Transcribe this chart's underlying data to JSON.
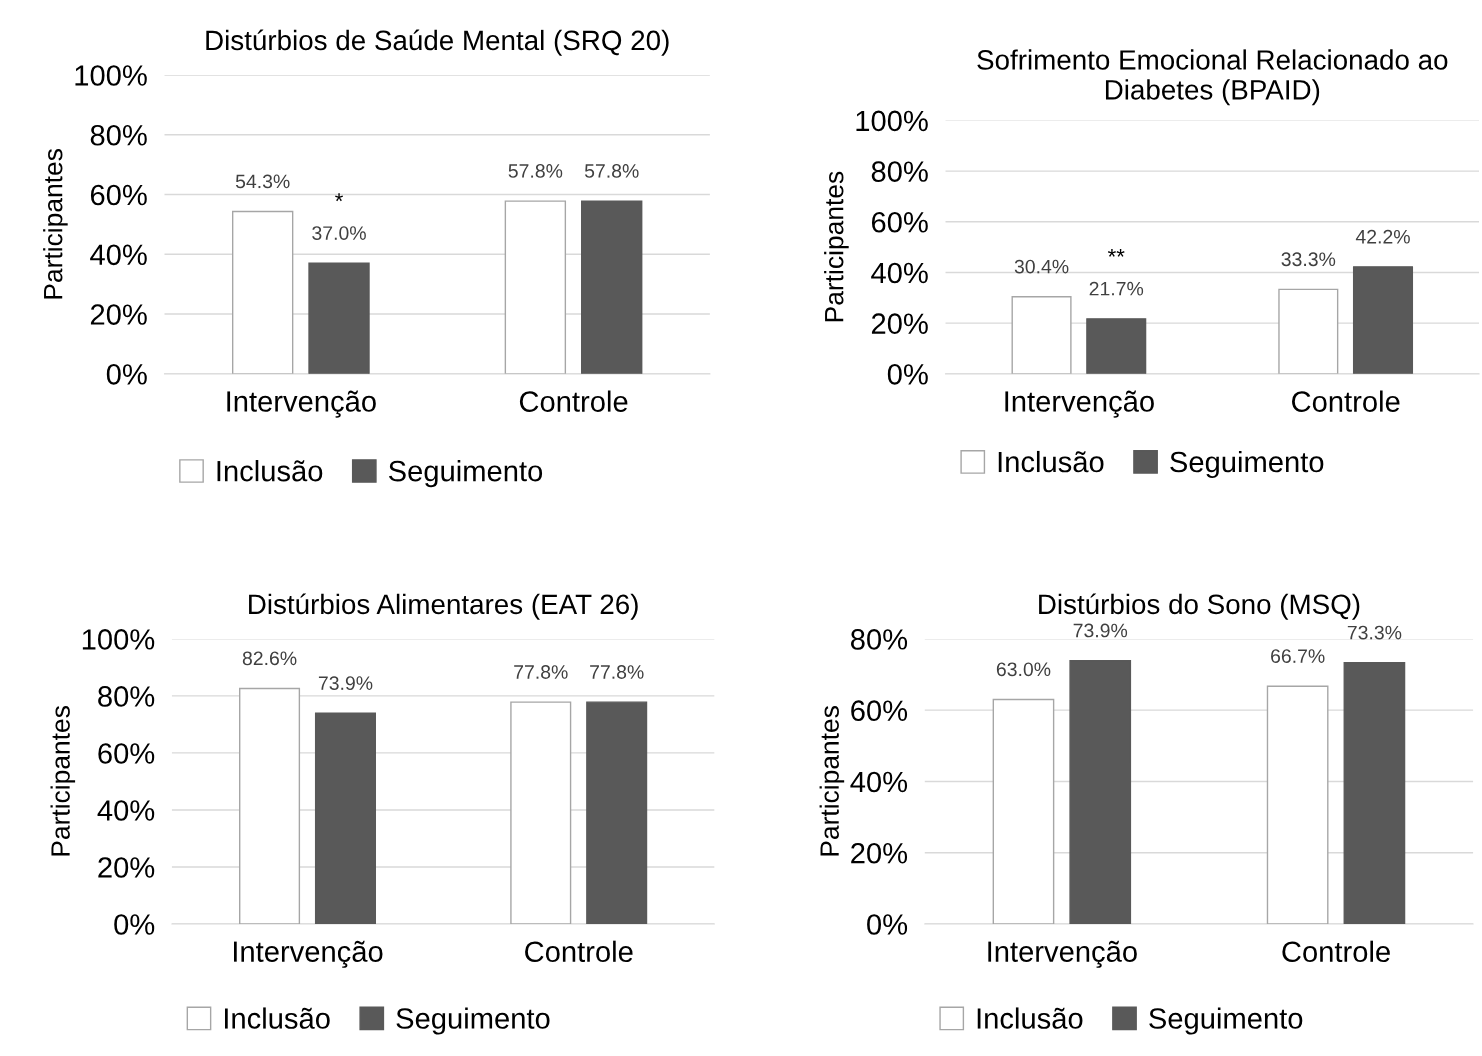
{
  "chart_data": [
    {
      "type": "bar",
      "title": "Distúrbios de Saúde Mental (SRQ 20)",
      "ylabel": "Participantes",
      "categories": [
        "Intervenção",
        "Controle"
      ],
      "ylim": [
        0,
        100
      ],
      "yticks": [
        {
          "value": 0,
          "label": "0%"
        },
        {
          "value": 20,
          "label": "20%"
        },
        {
          "value": 40,
          "label": "40%"
        },
        {
          "value": 60,
          "label": "60%"
        },
        {
          "value": 80,
          "label": "80%"
        },
        {
          "value": 100,
          "label": "100%"
        }
      ],
      "grid": "y",
      "legend": "bottom",
      "series": [
        {
          "name": "Inclusão",
          "color": "#ffffff",
          "values": [
            54.3,
            57.8
          ],
          "value_labels": [
            "54.3%",
            "57.8%"
          ]
        },
        {
          "name": "Seguimento",
          "color": "#595959",
          "values": [
            37.0,
            57.8
          ],
          "value_labels": [
            "37.0%",
            "57.8%"
          ]
        }
      ],
      "annotations": [
        "*"
      ]
    },
    {
      "type": "bar",
      "title": "Sofrimento Emocional Relacionado ao Diabetes (BPAID)",
      "ylabel": "Participantes",
      "categories": [
        "Intervenção",
        "Controle"
      ],
      "ylim": [
        0,
        100
      ],
      "yticks": [
        {
          "value": 0,
          "label": "0%"
        },
        {
          "value": 20,
          "label": "20%"
        },
        {
          "value": 40,
          "label": "40%"
        },
        {
          "value": 60,
          "label": "60%"
        },
        {
          "value": 80,
          "label": "80%"
        },
        {
          "value": 100,
          "label": "100%"
        }
      ],
      "grid": "y",
      "legend": "bottom",
      "series": [
        {
          "name": "Inclusão",
          "color": "#ffffff",
          "values": [
            30.4,
            33.3
          ],
          "value_labels": [
            "30.4%",
            "33.3%"
          ]
        },
        {
          "name": "Seguimento",
          "color": "#595959",
          "values": [
            21.7,
            42.2
          ],
          "value_labels": [
            "21.7%",
            "42.2%"
          ]
        }
      ],
      "annotations": [
        "**"
      ]
    },
    {
      "type": "bar",
      "title": "Distúrbios Alimentares (EAT 26)",
      "ylabel": "Participantes",
      "categories": [
        "Intervenção",
        "Controle"
      ],
      "ylim": [
        0,
        100
      ],
      "yticks": [
        {
          "value": 0,
          "label": "0%"
        },
        {
          "value": 20,
          "label": "20%"
        },
        {
          "value": 40,
          "label": "40%"
        },
        {
          "value": 60,
          "label": "60%"
        },
        {
          "value": 80,
          "label": "80%"
        },
        {
          "value": 100,
          "label": "100%"
        }
      ],
      "grid": "y",
      "legend": "bottom",
      "series": [
        {
          "name": "Inclusão",
          "color": "#ffffff",
          "values": [
            82.6,
            77.8
          ],
          "value_labels": [
            "82.6%",
            "77.8%"
          ]
        },
        {
          "name": "Seguimento",
          "color": "#595959",
          "values": [
            73.9,
            77.8
          ],
          "value_labels": [
            "73.9%",
            "77.8%"
          ]
        }
      ]
    },
    {
      "type": "bar",
      "title": "Distúrbios do Sono (MSQ)",
      "ylabel": "Participantes",
      "categories": [
        "Intervenção",
        "Controle"
      ],
      "ylim": [
        0,
        80
      ],
      "yticks": [
        {
          "value": 0,
          "label": "0%"
        },
        {
          "value": 20,
          "label": "20%"
        },
        {
          "value": 40,
          "label": "40%"
        },
        {
          "value": 60,
          "label": "60%"
        },
        {
          "value": 80,
          "label": "80%"
        }
      ],
      "grid": "y",
      "legend": "bottom",
      "series": [
        {
          "name": "Inclusão",
          "color": "#ffffff",
          "values": [
            63.0,
            66.7
          ],
          "value_labels": [
            "63.0%",
            "66.7%"
          ]
        },
        {
          "name": "Seguimento",
          "color": "#595959",
          "values": [
            73.9,
            73.3
          ],
          "value_labels": [
            "73.9%",
            "73.3%"
          ]
        }
      ]
    }
  ]
}
